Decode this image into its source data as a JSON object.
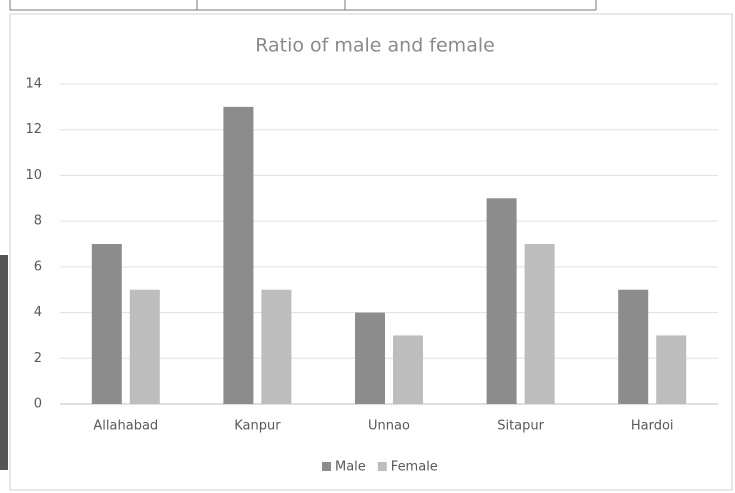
{
  "chart_data": {
    "type": "bar",
    "title": "Ratio of male and female",
    "categories": [
      "Allahabad",
      "Kanpur",
      "Unnao",
      "Sitapur",
      "Hardoi"
    ],
    "series": [
      {
        "name": "Male",
        "color": "#8c8c8c",
        "values": [
          7,
          13,
          4,
          9,
          5
        ]
      },
      {
        "name": "Female",
        "color": "#bdbdbd",
        "values": [
          5,
          5,
          3,
          7,
          3
        ]
      }
    ],
    "ylim": [
      0,
      14
    ],
    "yticks": [
      0,
      2,
      4,
      6,
      8,
      10,
      12,
      14
    ],
    "grid": true,
    "legend": "bottom"
  }
}
